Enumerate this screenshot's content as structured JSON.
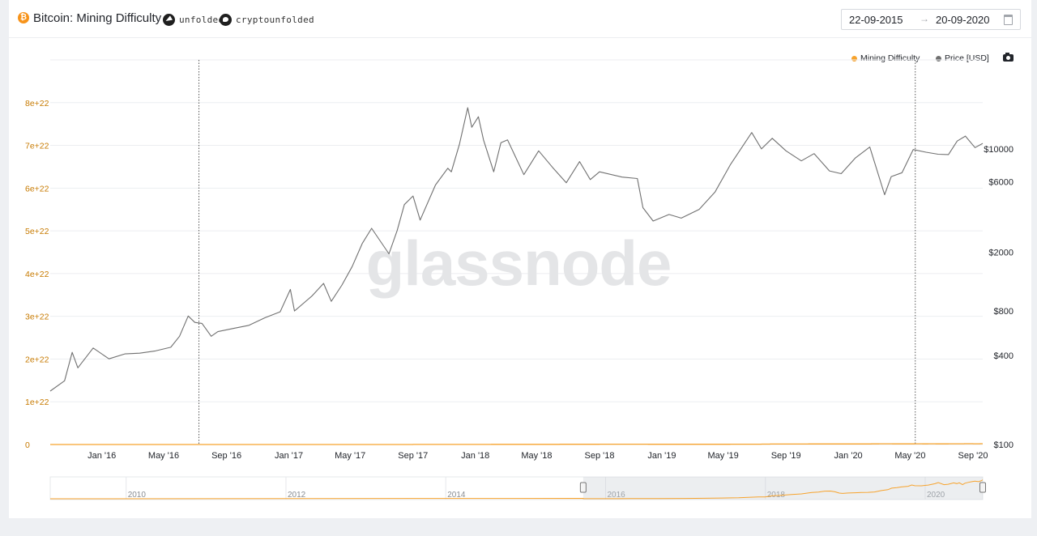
{
  "header": {
    "title": "Bitcoin: Mining Difficulty",
    "social_telegram": "unfolded",
    "social_twitter": "cryptounfolded",
    "date_from": "22-09-2015",
    "date_to": "20-09-2020"
  },
  "watermark": "glassnode",
  "legend": [
    {
      "label": "Mining Difficulty",
      "color": "#f7a32d"
    },
    {
      "label": "Price [USD]",
      "color": "#707070"
    }
  ],
  "chart_data": {
    "type": "line",
    "title": "Bitcoin: Mining Difficulty",
    "x_ticks": [
      "Jan '16",
      "May '16",
      "Sep '16",
      "Jan '17",
      "May '17",
      "Sep '17",
      "Jan '18",
      "May '18",
      "Sep '18",
      "Jan '19",
      "May '19",
      "Sep '19",
      "Jan '20",
      "May '20",
      "Sep '20"
    ],
    "x_tick_dates": [
      "2016-01-01",
      "2016-05-01",
      "2016-09-01",
      "2017-01-01",
      "2017-05-01",
      "2017-09-01",
      "2018-01-01",
      "2018-05-01",
      "2018-09-01",
      "2019-01-01",
      "2019-05-01",
      "2019-09-01",
      "2020-01-01",
      "2020-05-01",
      "2020-09-01"
    ],
    "x_range": [
      "2015-09-22",
      "2020-09-20"
    ],
    "y_left": {
      "ticks": [
        "0",
        "1e+22",
        "2e+22",
        "3e+22",
        "4e+22",
        "5e+22",
        "6e+22",
        "7e+22",
        "8e+22"
      ],
      "range": [
        0,
        9e+22
      ],
      "color": "#c77a00"
    },
    "y_right": {
      "ticks": [
        "$100",
        "$400",
        "$800",
        "$2000",
        "$6000",
        "$10000"
      ],
      "tick_values": [
        100,
        400,
        800,
        2000,
        6000,
        10000
      ],
      "scale": "log",
      "range": [
        100,
        40000
      ]
    },
    "vertical_markers": [
      "2016-07-09",
      "2020-05-11"
    ],
    "series": [
      {
        "name": "Mining Difficulty",
        "axis": "left",
        "color": "#f7a32d",
        "step": true,
        "points": [
          [
            "2015-09-22",
            6e+17
          ],
          [
            "2016-01-01",
            1.05e+18
          ],
          [
            "2016-05-01",
            1.78e+18
          ],
          [
            "2016-09-01",
            2.2e+18
          ],
          [
            "2017-01-01",
            3.17e+18
          ],
          [
            "2017-04-01",
            5e+18
          ],
          [
            "2017-06-15",
            7.1e+18
          ],
          [
            "2017-08-01",
            9.2e+18
          ],
          [
            "2017-09-01",
            1e+19
          ],
          [
            "2017-10-15",
            1.4e+19
          ],
          [
            "2017-12-01",
            1.86e+19
          ],
          [
            "2017-12-31",
            1.9e+19
          ],
          [
            "2018-02-01",
            3e+19
          ],
          [
            "2018-03-15",
            3.6e+19
          ],
          [
            "2018-05-01",
            4.4e+19
          ],
          [
            "2018-06-15",
            5e+19
          ],
          [
            "2018-08-01",
            6.4e+19
          ],
          [
            "2018-09-01",
            6.9e+19
          ],
          [
            "2018-10-01",
            7.8e+19
          ],
          [
            "2018-10-25",
            7.9e+19
          ],
          [
            "2018-11-15",
            7.2e+19
          ],
          [
            "2018-12-05",
            5.8e+19
          ],
          [
            "2018-12-20",
            5.5e+19
          ],
          [
            "2019-01-15",
            5.9e+19
          ],
          [
            "2019-02-15",
            6.2e+19
          ],
          [
            "2019-03-15",
            6.4e+19
          ],
          [
            "2019-04-15",
            6.6e+19
          ],
          [
            "2019-05-15",
            7e+19
          ],
          [
            "2019-06-15",
            8.4e+19
          ],
          [
            "2019-07-15",
            9.3e+19
          ],
          [
            "2019-08-01",
            1.09e+20
          ],
          [
            "2019-08-25",
            1.15e+20
          ],
          [
            "2019-09-15",
            1.22e+20
          ],
          [
            "2019-10-15",
            1.28e+20
          ],
          [
            "2019-11-01",
            1.42e+20
          ],
          [
            "2019-11-15",
            1.34e+20
          ],
          [
            "2019-12-15",
            1.33e+20
          ],
          [
            "2020-01-15",
            1.41e+20
          ],
          [
            "2020-02-15",
            1.55e+20
          ],
          [
            "2020-03-01",
            1.67e+20
          ],
          [
            "2020-03-27",
            1.45e+20
          ],
          [
            "2020-04-15",
            1.49e+20
          ],
          [
            "2020-05-10",
            1.63e+20
          ],
          [
            "2020-05-25",
            1.56e+20
          ],
          [
            "2020-06-05",
            1.64e+20
          ],
          [
            "2020-06-20",
            1.45e+20
          ],
          [
            "2020-07-01",
            1.6e+20
          ],
          [
            "2020-07-15",
            1.68e+20
          ],
          [
            "2020-07-30",
            1.75e+20
          ],
          [
            "2020-08-15",
            1.81e+20
          ],
          [
            "2020-09-01",
            1.76e+20
          ],
          [
            "2020-09-15",
            1.87e+20
          ],
          [
            "2020-09-20",
            1.95e+20
          ]
        ]
      },
      {
        "name": "Price [USD]",
        "axis": "right",
        "color": "#707070",
        "step": false,
        "points": [
          [
            "2015-09-22",
            230
          ],
          [
            "2015-10-20",
            270
          ],
          [
            "2015-11-04",
            420
          ],
          [
            "2015-11-15",
            330
          ],
          [
            "2015-12-15",
            450
          ],
          [
            "2016-01-15",
            380
          ],
          [
            "2016-02-15",
            410
          ],
          [
            "2016-03-15",
            415
          ],
          [
            "2016-04-15",
            430
          ],
          [
            "2016-05-15",
            455
          ],
          [
            "2016-06-01",
            540
          ],
          [
            "2016-06-18",
            740
          ],
          [
            "2016-07-01",
            670
          ],
          [
            "2016-07-15",
            660
          ],
          [
            "2016-08-02",
            540
          ],
          [
            "2016-08-15",
            580
          ],
          [
            "2016-09-15",
            610
          ],
          [
            "2016-10-15",
            640
          ],
          [
            "2016-11-15",
            720
          ],
          [
            "2016-12-15",
            790
          ],
          [
            "2017-01-04",
            1120
          ],
          [
            "2017-01-12",
            800
          ],
          [
            "2017-02-15",
            1010
          ],
          [
            "2017-03-10",
            1230
          ],
          [
            "2017-03-25",
            930
          ],
          [
            "2017-04-15",
            1200
          ],
          [
            "2017-05-05",
            1600
          ],
          [
            "2017-05-25",
            2300
          ],
          [
            "2017-06-12",
            2900
          ],
          [
            "2017-07-16",
            1950
          ],
          [
            "2017-08-01",
            2800
          ],
          [
            "2017-08-15",
            4200
          ],
          [
            "2017-09-01",
            4800
          ],
          [
            "2017-09-15",
            3300
          ],
          [
            "2017-10-15",
            5700
          ],
          [
            "2017-11-08",
            7400
          ],
          [
            "2017-11-15",
            7000
          ],
          [
            "2017-12-01",
            10800
          ],
          [
            "2017-12-17",
            19000
          ],
          [
            "2017-12-25",
            14000
          ],
          [
            "2018-01-07",
            16500
          ],
          [
            "2018-01-17",
            11500
          ],
          [
            "2018-02-06",
            7000
          ],
          [
            "2018-02-20",
            11000
          ],
          [
            "2018-03-05",
            11500
          ],
          [
            "2018-04-06",
            6700
          ],
          [
            "2018-05-05",
            9700
          ],
          [
            "2018-06-01",
            7500
          ],
          [
            "2018-06-28",
            5900
          ],
          [
            "2018-07-24",
            8200
          ],
          [
            "2018-08-14",
            6200
          ],
          [
            "2018-09-01",
            7000
          ],
          [
            "2018-10-15",
            6450
          ],
          [
            "2018-11-14",
            6300
          ],
          [
            "2018-11-25",
            4000
          ],
          [
            "2018-12-15",
            3250
          ],
          [
            "2019-01-15",
            3600
          ],
          [
            "2019-02-08",
            3400
          ],
          [
            "2019-03-15",
            3900
          ],
          [
            "2019-04-15",
            5100
          ],
          [
            "2019-05-15",
            7800
          ],
          [
            "2019-06-26",
            12900
          ],
          [
            "2019-07-15",
            10000
          ],
          [
            "2019-08-05",
            11800
          ],
          [
            "2019-09-01",
            9700
          ],
          [
            "2019-10-01",
            8300
          ],
          [
            "2019-10-26",
            9300
          ],
          [
            "2019-11-25",
            7100
          ],
          [
            "2019-12-18",
            6800
          ],
          [
            "2020-01-15",
            8700
          ],
          [
            "2020-02-12",
            10300
          ],
          [
            "2020-03-12",
            4900
          ],
          [
            "2020-03-25",
            6500
          ],
          [
            "2020-04-15",
            6900
          ],
          [
            "2020-05-07",
            9900
          ],
          [
            "2020-06-01",
            9500
          ],
          [
            "2020-06-25",
            9200
          ],
          [
            "2020-07-15",
            9150
          ],
          [
            "2020-08-01",
            11300
          ],
          [
            "2020-08-17",
            12200
          ],
          [
            "2020-09-05",
            10200
          ],
          [
            "2020-09-20",
            10900
          ]
        ]
      }
    ],
    "navigator": {
      "x_ticks": [
        "2010",
        "2012",
        "2014",
        "2016",
        "2018",
        "2020"
      ],
      "selection": [
        "2015-09-22",
        "2020-09-20"
      ]
    },
    "grid": true,
    "legend_position": "top-right"
  }
}
